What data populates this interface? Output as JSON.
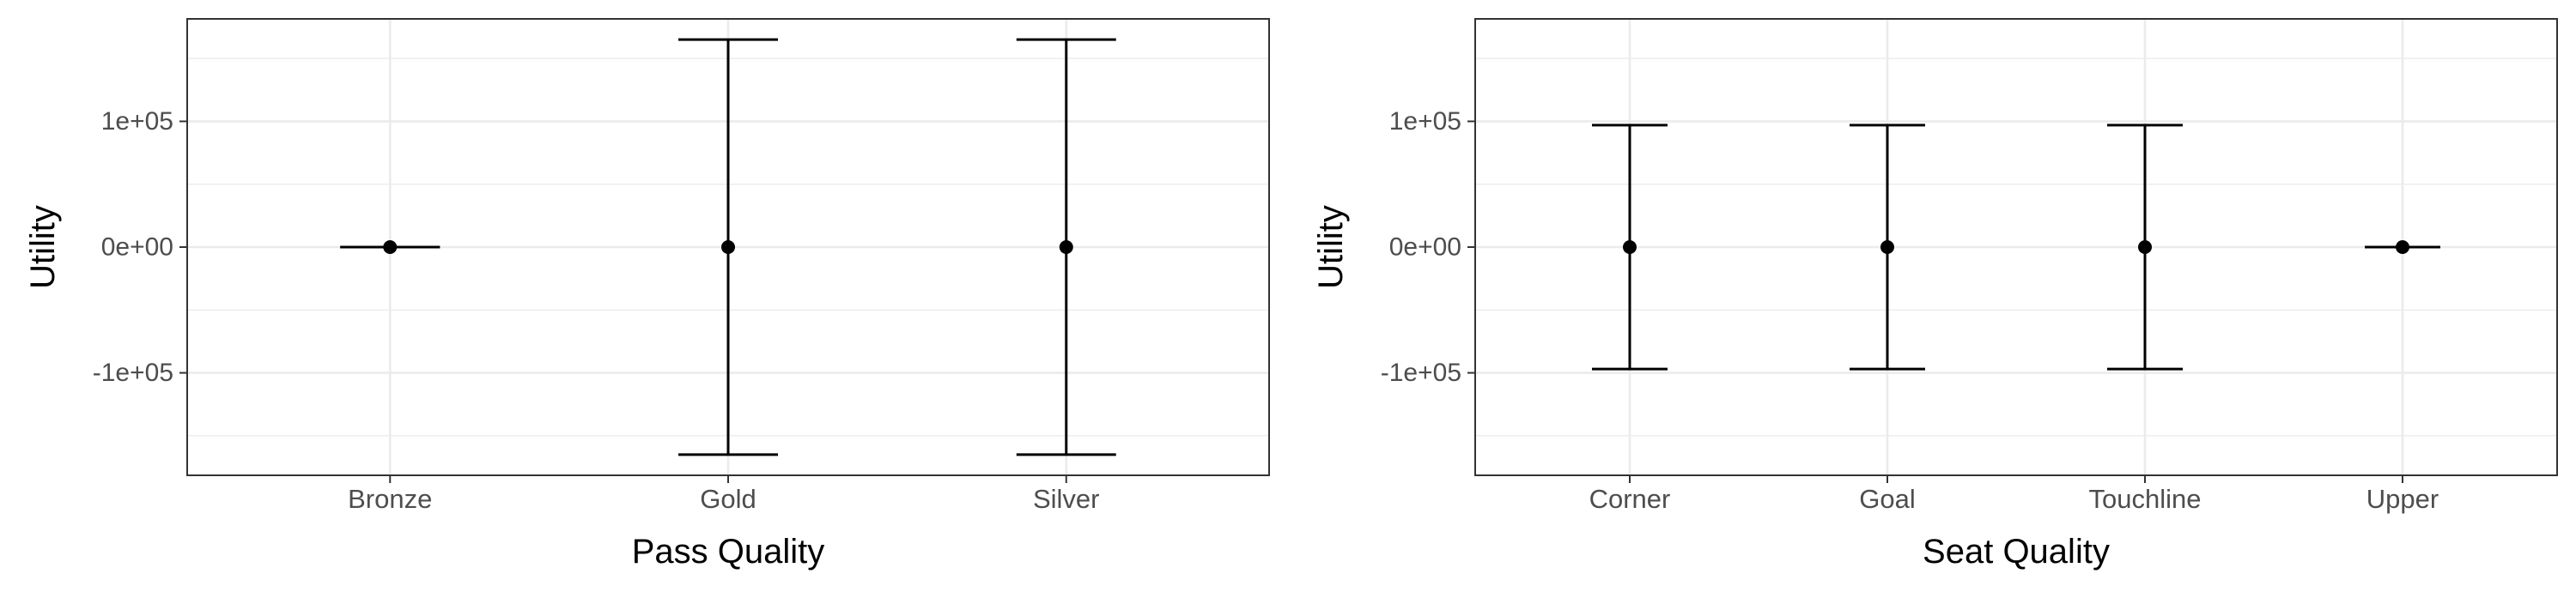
{
  "chart_data": [
    {
      "type": "errorbar",
      "xlabel": "Pass Quality",
      "ylabel": "Utility",
      "categories": [
        "Bronze",
        "Gold",
        "Silver"
      ],
      "points": [
        {
          "category": "Bronze",
          "y": 0,
          "ymin": 0,
          "ymax": 0
        },
        {
          "category": "Gold",
          "y": 0,
          "ymin": -165000,
          "ymax": 165000
        },
        {
          "category": "Silver",
          "y": 0,
          "ymin": -165000,
          "ymax": 165000
        }
      ],
      "y_ticks": [
        {
          "value": 100000,
          "label": "1e+05"
        },
        {
          "value": 0,
          "label": "0e+00"
        },
        {
          "value": -100000,
          "label": "-1e+05"
        }
      ],
      "ylim": [
        -181500,
        181500
      ],
      "grid": true
    },
    {
      "type": "errorbar",
      "xlabel": "Seat Quality",
      "ylabel": "Utility",
      "categories": [
        "Corner",
        "Goal",
        "Touchline",
        "Upper"
      ],
      "points": [
        {
          "category": "Corner",
          "y": 0,
          "ymin": -97000,
          "ymax": 97000
        },
        {
          "category": "Goal",
          "y": 0,
          "ymin": -97000,
          "ymax": 97000
        },
        {
          "category": "Touchline",
          "y": 0,
          "ymin": -97000,
          "ymax": 97000
        },
        {
          "category": "Upper",
          "y": 0,
          "ymin": 0,
          "ymax": 0
        }
      ],
      "y_ticks": [
        {
          "value": 100000,
          "label": "1e+05"
        },
        {
          "value": 0,
          "label": "0e+00"
        },
        {
          "value": -100000,
          "label": "-1e+05"
        }
      ],
      "ylim": [
        -181500,
        181500
      ],
      "grid": true
    }
  ]
}
